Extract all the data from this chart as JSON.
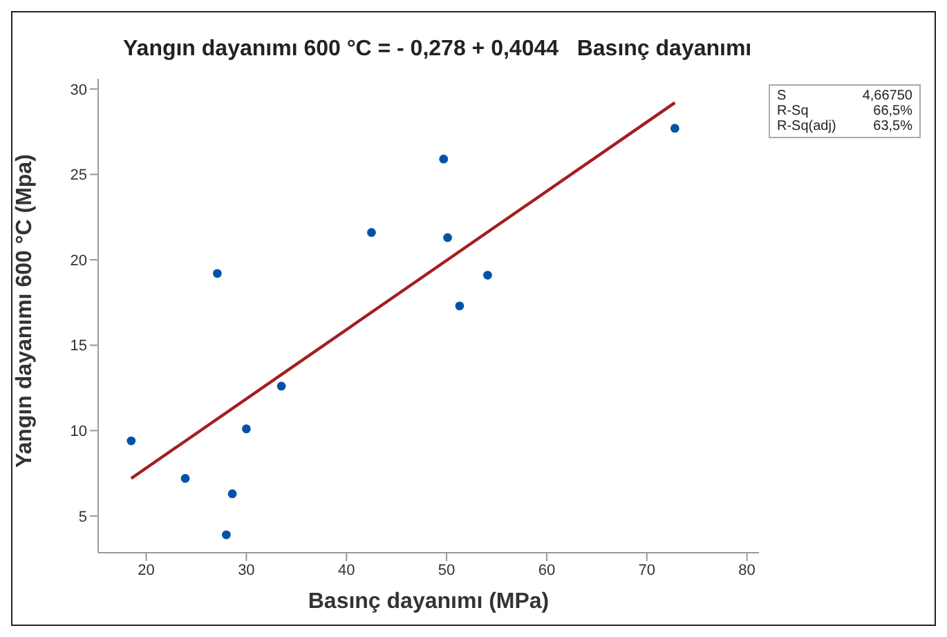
{
  "chart_data": {
    "type": "scatter",
    "title": "Yangın dayanımı 600 °C = - 0,278 + 0,4044   Basınç dayanımı",
    "xlabel": "Basınç dayanımı (MPa)",
    "ylabel": "Yangın dayanımı 600 °C (Mpa)",
    "x": [
      18.5,
      23.9,
      27.1,
      28.6,
      28.0,
      30.0,
      33.5,
      42.5,
      49.7,
      50.1,
      51.3,
      54.1,
      72.8
    ],
    "series": [
      {
        "color": "#0054a6",
        "values": [
          9.4,
          7.2,
          19.2,
          6.3,
          3.9,
          10.1,
          12.6,
          21.6,
          25.9,
          21.3,
          17.3,
          19.1,
          27.7
        ],
        "marker": "circle"
      },
      {
        "type": "line",
        "color": "#a31f1f",
        "x": [
          18.5,
          72.8
        ],
        "values": [
          7.2,
          29.2
        ],
        "marker": "none",
        "line_style": "solid"
      }
    ],
    "xlim": [
      15.2,
      81.2
    ],
    "xticks": [
      20,
      30,
      40,
      50,
      60,
      70,
      80
    ],
    "ylim": [
      2.85,
      30.6
    ],
    "yticks": [
      5,
      10,
      15,
      20,
      25,
      30
    ],
    "grid": false,
    "annotations": [
      "S",
      "4,66750",
      "R-Sq",
      "66,5%",
      "R-Sq(adj)",
      "63,5%"
    ]
  }
}
